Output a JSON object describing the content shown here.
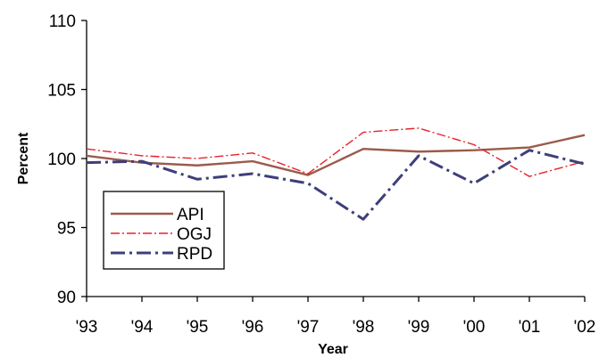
{
  "chart_data": {
    "type": "line",
    "title": "",
    "xlabel": "Year",
    "ylabel": "Percent",
    "categories": [
      "'93",
      "'94",
      "'95",
      "'96",
      "'97",
      "'98",
      "'99",
      "'00",
      "'01",
      "'02"
    ],
    "yticks": [
      "90",
      "95",
      "100",
      "105",
      "110"
    ],
    "ylim": [
      90,
      110
    ],
    "grid": false,
    "legend_position": "lower-left",
    "series": [
      {
        "name": "API",
        "color": "#9b5b4a",
        "style": "solid",
        "values": [
          100.2,
          99.7,
          99.5,
          99.8,
          98.8,
          100.7,
          100.5,
          100.6,
          100.8,
          101.7
        ]
      },
      {
        "name": "OGJ",
        "color": "#e8202a",
        "style": "dash-dot",
        "values": [
          100.7,
          100.2,
          100.0,
          100.4,
          98.9,
          101.9,
          102.2,
          101.0,
          98.7,
          99.8
        ]
      },
      {
        "name": "RPD",
        "color": "#3d3f7a",
        "style": "long-dash-dot",
        "values": [
          99.7,
          99.8,
          98.5,
          98.9,
          98.2,
          95.6,
          100.2,
          98.2,
          100.6,
          99.6
        ]
      }
    ]
  }
}
